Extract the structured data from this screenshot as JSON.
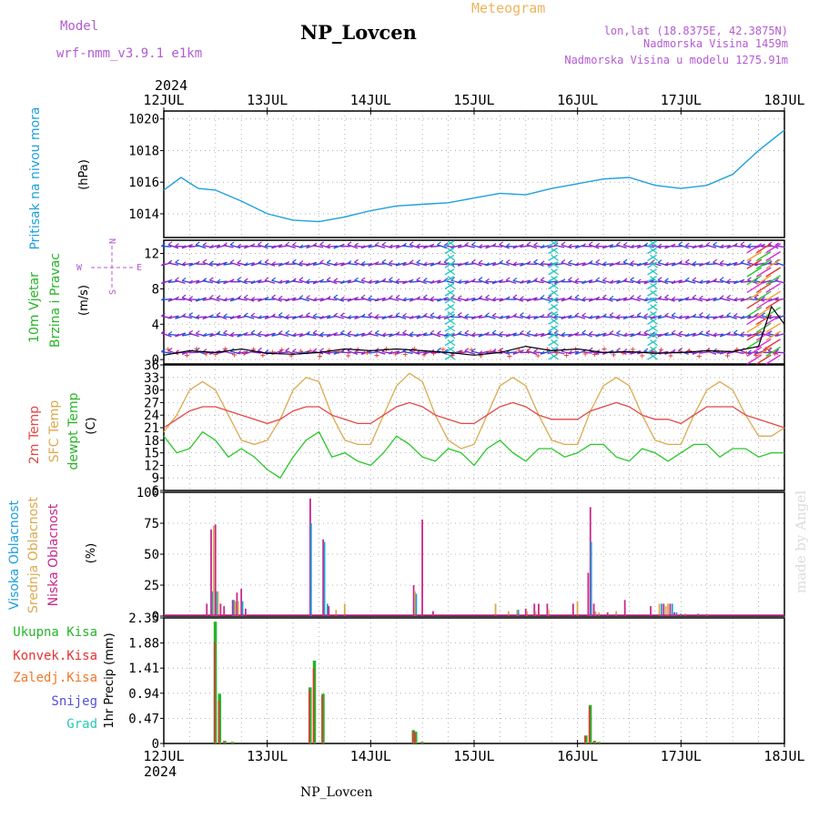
{
  "header": {
    "model_label": "Model",
    "model_name": "wrf-nmm_v3.9.1 e1km",
    "title": "NP_Lovcen",
    "product": "Meteogram",
    "coords": "lon,lat (18.8375E, 42.3875N)",
    "elevation": "Nadmorska Visina 1459m",
    "model_elevation": "Nadmorska Visina u modelu 1275.91m",
    "credit": "made by Angel",
    "footer": "NP_Lovcen",
    "year_top": "2024",
    "year_bottom": "2024"
  },
  "colors": {
    "pressure": "#1ea0dc",
    "temp2m": "#e64646",
    "sfc": "#dcaa50",
    "dew": "#28c828",
    "high_cloud": "#1ea0dc",
    "mid_cloud": "#dcaa50",
    "low_cloud": "#c8288c",
    "precip_total": "#28b428",
    "precip_conv": "#e63232",
    "precip_strat": "#f07828",
    "snow": "#5050dc",
    "hail": "#28c8b4",
    "wind_arrow": "#8c28c8",
    "wind_blue": "#2850dc",
    "wind_cyan": "#28c8dc"
  },
  "chart_data": [
    {
      "type": "line",
      "panel": "pressure",
      "ylabel": [
        "Pritisak na nivou mora",
        "(hPa)"
      ],
      "x_ticks": [
        "12JUL",
        "13JUL",
        "14JUL",
        "15JUL",
        "16JUL",
        "17JUL",
        "18JUL"
      ],
      "y_ticks": [
        "1014",
        "1016",
        "1018",
        "1020"
      ],
      "ylim": [
        1012.5,
        1020.5
      ],
      "series": [
        {
          "key": "pressure",
          "hours": [
            0,
            4,
            8,
            12,
            18,
            24,
            30,
            36,
            42,
            48,
            54,
            60,
            66,
            72,
            78,
            84,
            90,
            96,
            102,
            108,
            114,
            120,
            126,
            132,
            138,
            144
          ],
          "values": [
            1015.5,
            1016.3,
            1015.6,
            1015.5,
            1014.8,
            1014.0,
            1013.6,
            1013.5,
            1013.8,
            1014.2,
            1014.5,
            1014.6,
            1014.7,
            1015.0,
            1015.3,
            1015.2,
            1015.6,
            1015.9,
            1016.2,
            1016.3,
            1015.8,
            1015.6,
            1015.8,
            1016.5,
            1018.0,
            1019.3
          ]
        }
      ]
    },
    {
      "type": "line",
      "panel": "wind",
      "ylabel": [
        "10m Vjetar",
        "Brzina i Pravac",
        "(m/s)"
      ],
      "compass": {
        "n": "N",
        "s": "S",
        "w": "W",
        "e": "E"
      },
      "y_ticks": [
        "0",
        "4",
        "8",
        "12"
      ],
      "ylim": [
        -0.5,
        13.5
      ],
      "series": [
        {
          "key": "wind_speed",
          "hours": [
            0,
            6,
            12,
            18,
            24,
            30,
            36,
            42,
            48,
            54,
            60,
            66,
            72,
            78,
            84,
            90,
            96,
            102,
            108,
            114,
            120,
            126,
            132,
            138,
            141,
            144
          ],
          "values": [
            0.5,
            1.0,
            0.8,
            1.2,
            0.7,
            0.6,
            0.8,
            1.2,
            1.0,
            1.2,
            1.0,
            0.8,
            0.5,
            0.8,
            1.5,
            1.0,
            1.2,
            0.8,
            0.9,
            0.7,
            0.8,
            1.0,
            0.9,
            1.5,
            6.0,
            4.0
          ]
        }
      ]
    },
    {
      "type": "line",
      "panel": "temperature",
      "ylabel": [
        "2m Temp",
        "SFC Temp",
        "dewpt Temp",
        "(C)"
      ],
      "y_ticks": [
        "6",
        "9",
        "12",
        "15",
        "18",
        "21",
        "24",
        "27",
        "30",
        "33",
        "36"
      ],
      "ylim": [
        6,
        36
      ],
      "series": [
        {
          "key": "temp2m",
          "hours": [
            0,
            3,
            6,
            9,
            12,
            15,
            18,
            21,
            24,
            27,
            30,
            33,
            36,
            39,
            42,
            45,
            48,
            51,
            54,
            57,
            60,
            63,
            66,
            69,
            72,
            75,
            78,
            81,
            84,
            87,
            90,
            93,
            96,
            99,
            102,
            105,
            108,
            111,
            114,
            117,
            120,
            123,
            126,
            129,
            132,
            135,
            138,
            141,
            144
          ],
          "values": [
            21,
            23,
            25,
            26,
            26,
            25,
            24,
            23,
            22,
            23,
            25,
            26,
            26,
            24,
            23,
            22,
            22,
            24,
            26,
            27,
            26,
            24,
            23,
            22,
            22,
            24,
            26,
            27,
            26,
            24,
            23,
            23,
            23,
            25,
            26,
            27,
            26,
            24,
            23,
            23,
            22,
            24,
            26,
            26,
            26,
            24,
            23,
            22,
            21
          ]
        },
        {
          "key": "sfc",
          "hours": [
            0,
            3,
            6,
            9,
            12,
            15,
            18,
            21,
            24,
            27,
            30,
            33,
            36,
            39,
            42,
            45,
            48,
            51,
            54,
            57,
            60,
            63,
            66,
            69,
            72,
            75,
            78,
            81,
            84,
            87,
            90,
            93,
            96,
            99,
            102,
            105,
            108,
            111,
            114,
            117,
            120,
            123,
            126,
            129,
            132,
            135,
            138,
            141,
            144
          ],
          "values": [
            20,
            24,
            30,
            32,
            30,
            24,
            18,
            17,
            18,
            23,
            30,
            33,
            32,
            24,
            18,
            17,
            17,
            24,
            31,
            34,
            32,
            24,
            18,
            16,
            17,
            24,
            31,
            33,
            31,
            24,
            18,
            17,
            17,
            25,
            31,
            33,
            31,
            24,
            18,
            17,
            17,
            24,
            30,
            32,
            30,
            24,
            19,
            19,
            21
          ]
        },
        {
          "key": "dew",
          "hours": [
            0,
            3,
            6,
            9,
            12,
            15,
            18,
            21,
            24,
            27,
            30,
            33,
            36,
            39,
            42,
            45,
            48,
            51,
            54,
            57,
            60,
            63,
            66,
            69,
            72,
            75,
            78,
            81,
            84,
            87,
            90,
            93,
            96,
            99,
            102,
            105,
            108,
            111,
            114,
            117,
            120,
            123,
            126,
            129,
            132,
            135,
            138,
            141,
            144
          ],
          "values": [
            19,
            15,
            16,
            20,
            18,
            14,
            16,
            14,
            11,
            9,
            14,
            18,
            20,
            14,
            15,
            13,
            12,
            15,
            19,
            17,
            14,
            13,
            16,
            15,
            12,
            16,
            18,
            15,
            13,
            16,
            16,
            14,
            15,
            17,
            17,
            14,
            13,
            16,
            15,
            13,
            15,
            17,
            17,
            14,
            16,
            16,
            14,
            15,
            15
          ]
        }
      ]
    },
    {
      "type": "bar",
      "panel": "clouds",
      "ylabel": [
        "Visoka Oblacnost",
        "Srednja Oblacnost",
        "Niska Oblacnost",
        "(%)"
      ],
      "y_ticks": [
        "0",
        "25",
        "50",
        "75",
        "100"
      ],
      "ylim": [
        0,
        100
      ],
      "hours": [
        1,
        2,
        3,
        4,
        5,
        6,
        7,
        12,
        13,
        14,
        15,
        16,
        17,
        18,
        19,
        20,
        33,
        34,
        36,
        37,
        38,
        46,
        47,
        55,
        57,
        58,
        59,
        62,
        64,
        66,
        67,
        68,
        69,
        81,
        87,
        94,
        95,
        96,
        97,
        98,
        99,
        101,
        103,
        105,
        109,
        111,
        113,
        114,
        115,
        116,
        119,
        121,
        122,
        124,
        128,
        133,
        135,
        136,
        137,
        138,
        139,
        140,
        141,
        142
      ],
      "high": [
        0,
        0,
        0,
        0,
        0,
        0,
        0,
        0,
        0,
        0,
        0,
        0,
        0,
        0,
        0,
        0,
        0,
        0,
        0,
        0,
        0,
        0,
        0,
        0,
        0,
        0,
        0,
        0,
        0,
        0,
        0,
        0,
        0,
        0,
        0,
        0,
        0,
        0,
        0,
        0,
        0,
        0,
        0,
        0,
        0,
        0,
        0,
        0,
        0,
        0,
        0,
        0,
        0,
        0,
        0,
        0,
        0,
        0,
        0,
        0,
        0,
        0,
        0,
        0
      ],
      "mid": [
        0,
        0,
        0,
        0,
        0,
        0,
        0,
        0,
        0,
        0,
        0,
        0,
        0,
        0,
        0,
        0,
        0,
        0,
        0,
        0,
        0,
        0,
        0,
        0,
        0,
        0,
        0,
        0,
        0,
        0,
        0,
        0,
        0,
        0,
        0,
        0,
        0,
        0,
        0,
        0,
        0,
        0,
        0,
        0,
        0,
        0,
        0,
        0,
        0,
        0,
        0,
        0,
        0,
        0,
        0,
        0,
        0,
        0,
        0,
        0,
        0,
        0,
        0,
        0
      ],
      "low": [
        0,
        0,
        0,
        0,
        0,
        0,
        0,
        0,
        0,
        0,
        0,
        0,
        0,
        0,
        0,
        0,
        0,
        0,
        0,
        0,
        0,
        0,
        0,
        0,
        0,
        0,
        0,
        0,
        0,
        0,
        0,
        0,
        0,
        0,
        0,
        0,
        0,
        0,
        0,
        0,
        0,
        0,
        0,
        0,
        0,
        0,
        0,
        0,
        0,
        0,
        0,
        0,
        0,
        0,
        0,
        0,
        0,
        0,
        0,
        0,
        0,
        0,
        0,
        0
      ],
      "bars": [
        {
          "h": 10.0,
          "c": "low",
          "v": 10
        },
        {
          "h": 11.0,
          "c": "low",
          "v": 70
        },
        {
          "h": 11.3,
          "c": "high",
          "v": 20
        },
        {
          "h": 11.6,
          "c": "mid",
          "v": 73
        },
        {
          "h": 12.0,
          "c": "low",
          "v": 74
        },
        {
          "h": 12.3,
          "c": "high",
          "v": 20
        },
        {
          "h": 12.6,
          "c": "mid",
          "v": 20
        },
        {
          "h": 13.2,
          "c": "low",
          "v": 10
        },
        {
          "h": 14.0,
          "c": "low",
          "v": 8
        },
        {
          "h": 16.0,
          "c": "low",
          "v": 13
        },
        {
          "h": 16.3,
          "c": "high",
          "v": 13
        },
        {
          "h": 16.6,
          "c": "mid",
          "v": 12
        },
        {
          "h": 17.0,
          "c": "low",
          "v": 19
        },
        {
          "h": 17.3,
          "c": "mid",
          "v": 12
        },
        {
          "h": 18.0,
          "c": "low",
          "v": 22
        },
        {
          "h": 18.3,
          "c": "high",
          "v": 12
        },
        {
          "h": 19.0,
          "c": "low",
          "v": 6
        },
        {
          "h": 34.0,
          "c": "low",
          "v": 95
        },
        {
          "h": 34.2,
          "c": "high",
          "v": 75
        },
        {
          "h": 37.0,
          "c": "low",
          "v": 62
        },
        {
          "h": 37.3,
          "c": "high",
          "v": 60
        },
        {
          "h": 38.0,
          "c": "high",
          "v": 10
        },
        {
          "h": 38.3,
          "c": "low",
          "v": 8
        },
        {
          "h": 40.0,
          "c": "mid",
          "v": 5
        },
        {
          "h": 42.0,
          "c": "mid",
          "v": 10
        },
        {
          "h": 58.0,
          "c": "low",
          "v": 25
        },
        {
          "h": 58.3,
          "c": "mid",
          "v": 20
        },
        {
          "h": 58.6,
          "c": "high",
          "v": 18
        },
        {
          "h": 60.0,
          "c": "low",
          "v": 78
        },
        {
          "h": 62.5,
          "c": "low",
          "v": 4
        },
        {
          "h": 77.0,
          "c": "mid",
          "v": 10
        },
        {
          "h": 80.0,
          "c": "mid",
          "v": 4
        },
        {
          "h": 82.0,
          "c": "mid",
          "v": 5
        },
        {
          "h": 82.3,
          "c": "high",
          "v": 5
        },
        {
          "h": 84.0,
          "c": "low",
          "v": 6
        },
        {
          "h": 84.3,
          "c": "mid",
          "v": 4
        },
        {
          "h": 86.0,
          "c": "low",
          "v": 10
        },
        {
          "h": 86.3,
          "c": "mid",
          "v": 4
        },
        {
          "h": 87.0,
          "c": "low",
          "v": 10
        },
        {
          "h": 89.0,
          "c": "low",
          "v": 10
        },
        {
          "h": 89.3,
          "c": "mid",
          "v": 5
        },
        {
          "h": 95.0,
          "c": "low",
          "v": 10
        },
        {
          "h": 96.0,
          "c": "mid",
          "v": 12
        },
        {
          "h": 98.5,
          "c": "low",
          "v": 35
        },
        {
          "h": 99.0,
          "c": "low",
          "v": 88
        },
        {
          "h": 99.2,
          "c": "high",
          "v": 60
        },
        {
          "h": 99.8,
          "c": "low",
          "v": 10
        },
        {
          "h": 100.2,
          "c": "mid",
          "v": 4
        },
        {
          "h": 101.0,
          "c": "mid",
          "v": 3
        },
        {
          "h": 103.0,
          "c": "low",
          "v": 3
        },
        {
          "h": 105.0,
          "c": "mid",
          "v": 4
        },
        {
          "h": 107.0,
          "c": "low",
          "v": 13
        },
        {
          "h": 113.0,
          "c": "low",
          "v": 8
        },
        {
          "h": 115.0,
          "c": "mid",
          "v": 10
        },
        {
          "h": 115.5,
          "c": "high",
          "v": 10
        },
        {
          "h": 116.0,
          "c": "low",
          "v": 10
        },
        {
          "h": 116.5,
          "c": "mid",
          "v": 8
        },
        {
          "h": 117.0,
          "c": "mid",
          "v": 10
        },
        {
          "h": 117.5,
          "c": "low",
          "v": 10
        },
        {
          "h": 118.0,
          "c": "high",
          "v": 10
        },
        {
          "h": 118.5,
          "c": "low",
          "v": 3
        },
        {
          "h": 119.0,
          "c": "high",
          "v": 3
        },
        {
          "h": 120.0,
          "c": "high",
          "v": 2
        },
        {
          "h": 121.0,
          "c": "mid",
          "v": 2
        },
        {
          "h": 124.0,
          "c": "high",
          "v": 2
        },
        {
          "h": 126.0,
          "c": "mid",
          "v": 2
        }
      ]
    },
    {
      "type": "bar",
      "panel": "precip",
      "ylabel": [
        "1hr Precip (mm)"
      ],
      "legend": [
        "Ukupna Kisa",
        "Konvek.Kisa",
        "Zaledj.Kisa",
        "Snijeg",
        "Grad"
      ],
      "y_ticks": [
        "0",
        "0.47",
        "0.94",
        "1.41",
        "1.88",
        "2.35"
      ],
      "ylim": [
        0,
        2.35
      ],
      "bars": [
        {
          "h": 12.0,
          "total": 2.28,
          "conv": 1.9
        },
        {
          "h": 13.0,
          "total": 0.93,
          "conv": 0.8
        },
        {
          "h": 14.2,
          "total": 0.05,
          "conv": 0.04
        },
        {
          "h": 16.0,
          "total": 0.03,
          "conv": 0.02
        },
        {
          "h": 34.0,
          "total": 1.05,
          "conv": 1.0
        },
        {
          "h": 35.0,
          "total": 1.55,
          "conv": 1.41
        },
        {
          "h": 37.0,
          "total": 0.93,
          "conv": 0.9
        },
        {
          "h": 58.0,
          "total": 0.25,
          "conv": 0.24
        },
        {
          "h": 58.5,
          "total": 0.22,
          "conv": 0.2
        },
        {
          "h": 60.0,
          "total": 0.03,
          "conv": 0.02
        },
        {
          "h": 98.0,
          "total": 0.15,
          "conv": 0.14
        },
        {
          "h": 99.0,
          "total": 0.72,
          "conv": 0.68
        },
        {
          "h": 100.0,
          "total": 0.05,
          "conv": 0.04
        },
        {
          "h": 101.0,
          "total": 0.03,
          "conv": 0.02
        }
      ]
    }
  ]
}
